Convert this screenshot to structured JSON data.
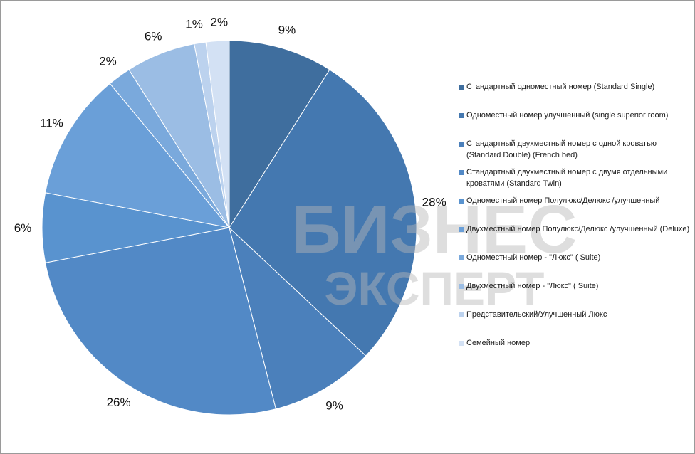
{
  "watermark": {
    "line1": "БИЗНЕС",
    "line2": "ЭКСПЕРТ"
  },
  "chart_data": {
    "type": "pie",
    "title": "",
    "legend_position": "right",
    "categories": [
      "Стандартный одноместный номер (Standard Single)",
      "Одноместный номер улучшенный (single superior room)",
      "Стандартный двухместный номер с одной кроватью (Standard Double) (French bed)",
      "Стандартный двухместный номер с двумя отдельными кроватями (Standard Twin)",
      "Одноместный номер Полулюкс/Делюкс /улучшенный",
      "Двухместный номер Полулюкс/Делюкс /улучшенный (Deluxe)",
      "Одноместный номер - \"Люкс\" ( Suite)",
      "Двухместный номер - \"Люкс\" ( Suite)",
      "Представительский/Улучшенный Люкс",
      "Семейный номер"
    ],
    "values": [
      9,
      28,
      9,
      26,
      6,
      11,
      2,
      6,
      1,
      2
    ],
    "data_labels": [
      "9%",
      "28%",
      "9%",
      "26%",
      "6%",
      "11%",
      "2%",
      "6%",
      "1%",
      "2%"
    ],
    "colors": [
      "#3f6e9e",
      "#4478b0",
      "#4b80bb",
      "#5289c6",
      "#5993cf",
      "#6a9fd8",
      "#7aa9dc",
      "#9bbde4",
      "#bcd2ee",
      "#d3e1f4"
    ]
  }
}
